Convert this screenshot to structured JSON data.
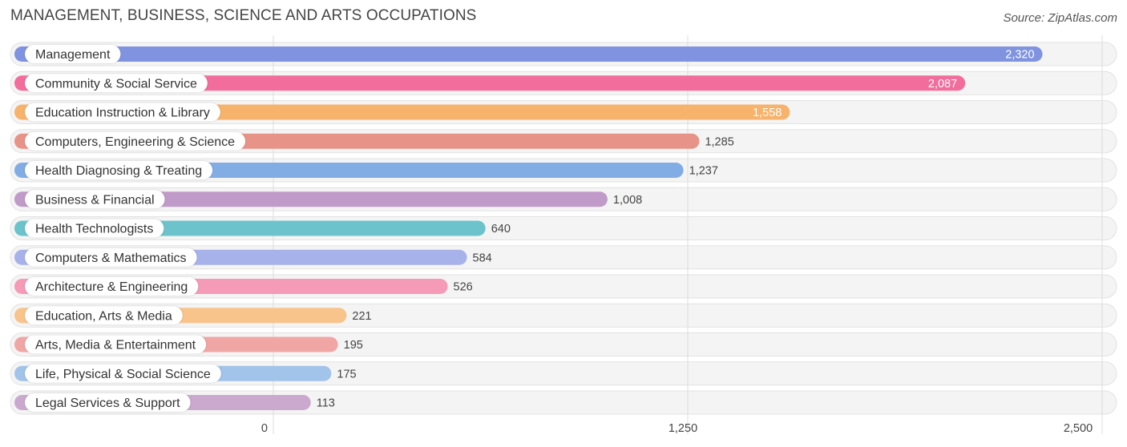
{
  "title": "MANAGEMENT, BUSINESS, SCIENCE AND ARTS OCCUPATIONS",
  "source": "Source: ZipAtlas.com",
  "chart_data": {
    "type": "bar",
    "orientation": "horizontal",
    "title": "MANAGEMENT, BUSINESS, SCIENCE AND ARTS OCCUPATIONS",
    "categories": [
      "Management",
      "Community & Social Service",
      "Education Instruction & Library",
      "Computers, Engineering & Science",
      "Health Diagnosing & Treating",
      "Business & Financial",
      "Health Technologists",
      "Computers & Mathematics",
      "Architecture & Engineering",
      "Education, Arts & Media",
      "Arts, Media & Entertainment",
      "Life, Physical & Social Science",
      "Legal Services & Support"
    ],
    "values": [
      2320,
      2087,
      1558,
      1285,
      1237,
      1008,
      640,
      584,
      526,
      221,
      195,
      175,
      113
    ],
    "value_labels": [
      "2,320",
      "2,087",
      "1,558",
      "1,285",
      "1,237",
      "1,008",
      "640",
      "584",
      "526",
      "221",
      "195",
      "175",
      "113"
    ],
    "colors": [
      "#7f93e0",
      "#f26d9b",
      "#f7b26c",
      "#e89388",
      "#82ace4",
      "#c09ac8",
      "#6cc3cc",
      "#a7b2ea",
      "#f59ab7",
      "#f8c48c",
      "#f1a6a6",
      "#a2c3ea",
      "#cba9cf"
    ],
    "xlim": [
      0,
      2500
    ],
    "xticks": [
      0,
      1250,
      2500
    ],
    "xtick_labels": [
      "0",
      "1,250",
      "2,500"
    ],
    "grid": true,
    "legend": "none"
  }
}
